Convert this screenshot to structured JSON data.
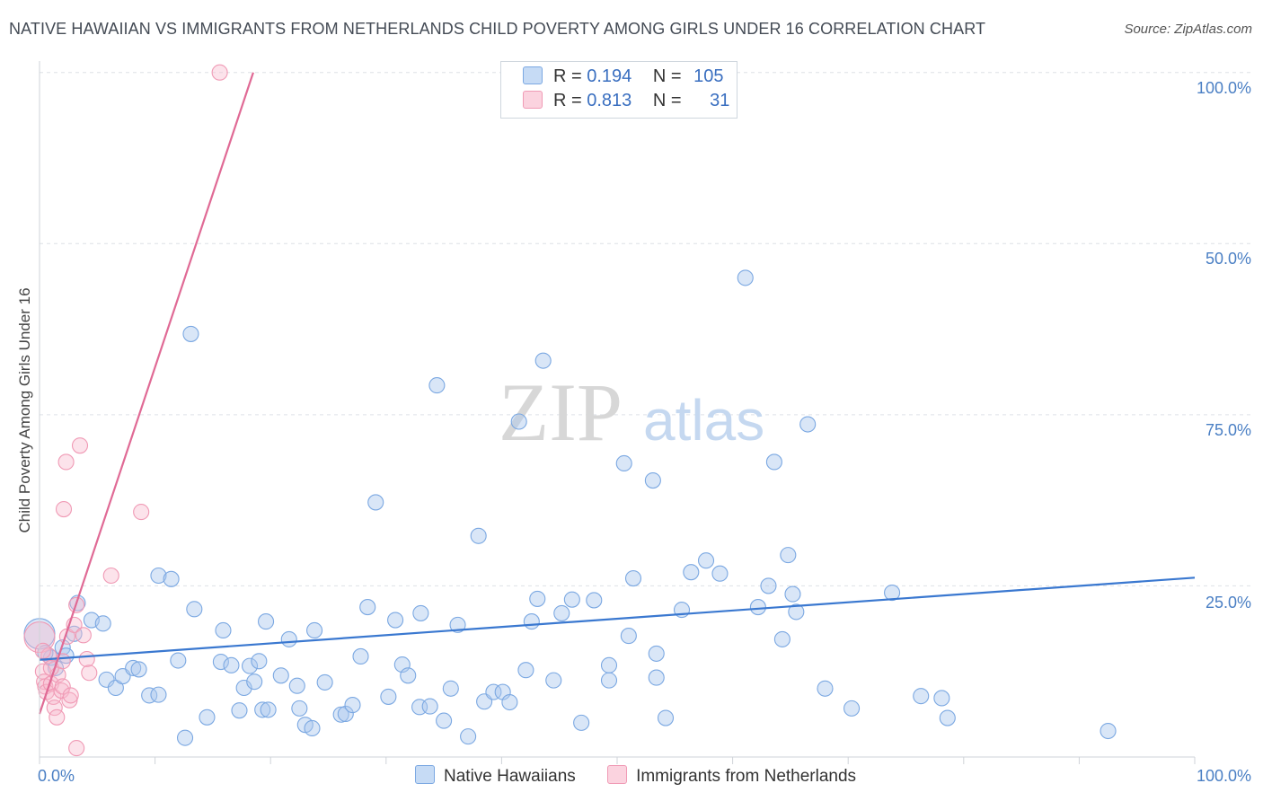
{
  "title": "NATIVE HAWAIIAN VS IMMIGRANTS FROM NETHERLANDS CHILD POVERTY AMONG GIRLS UNDER 16 CORRELATION CHART",
  "source": "Source: ZipAtlas.com",
  "watermark": {
    "zip": "ZIP",
    "atlas": "atlas"
  },
  "legend_top": [
    {
      "r_label": "R =",
      "r_value": "0.194",
      "n_label": "N =",
      "n_value": "105",
      "color": "#aac8ee"
    },
    {
      "r_label": "R =",
      "r_value": "0.813",
      "n_label": "N =",
      "n_value": "31",
      "color": "#f7b8cc"
    }
  ],
  "chart_data": {
    "type": "scatter",
    "title": "NATIVE HAWAIIAN VS IMMIGRANTS FROM NETHERLANDS CHILD POVERTY AMONG GIRLS UNDER 16 CORRELATION CHART",
    "xlabel": "",
    "ylabel": "Child Poverty Among Girls Under 16",
    "xlim": [
      0,
      100
    ],
    "ylim": [
      0,
      105
    ],
    "x_tick_labels": [
      "0.0%",
      "100.0%"
    ],
    "y_tick_labels": [
      "25.0%",
      "50.0%",
      "75.0%",
      "100.0%"
    ],
    "y_ticks": [
      25,
      50,
      75,
      100
    ],
    "grid": "horizontal dashed",
    "legend": "bottom-center",
    "series": [
      {
        "name": "Native Hawaiians",
        "color": "#6fa3e0",
        "fill": "#aac8ee",
        "trend": {
          "x0": 0,
          "y0": 14.2,
          "x1": 100,
          "y1": 26.2,
          "color": "#3a78d0"
        },
        "points": [
          [
            0.0,
            18.0
          ],
          [
            1.0,
            14.5
          ],
          [
            2.0,
            16.0
          ],
          [
            2.3,
            14.8
          ],
          [
            1.4,
            13.0
          ],
          [
            3.3,
            22.5
          ],
          [
            4.5,
            20.0
          ],
          [
            5.5,
            19.5
          ],
          [
            5.8,
            11.3
          ],
          [
            6.6,
            10.1
          ],
          [
            7.2,
            11.8
          ],
          [
            8.1,
            13.0
          ],
          [
            8.6,
            12.8
          ],
          [
            9.5,
            9.0
          ],
          [
            10.3,
            26.5
          ],
          [
            11.4,
            26.0
          ],
          [
            12.0,
            14.1
          ],
          [
            10.3,
            9.1
          ],
          [
            12.6,
            2.8
          ],
          [
            13.1,
            61.8
          ],
          [
            13.4,
            21.6
          ],
          [
            14.5,
            5.8
          ],
          [
            15.7,
            13.9
          ],
          [
            15.9,
            18.5
          ],
          [
            16.6,
            13.4
          ],
          [
            17.3,
            6.8
          ],
          [
            17.7,
            10.1
          ],
          [
            18.2,
            13.3
          ],
          [
            18.6,
            11.0
          ],
          [
            19.3,
            6.9
          ],
          [
            19.6,
            19.8
          ],
          [
            19.8,
            6.9
          ],
          [
            20.9,
            11.9
          ],
          [
            21.6,
            17.2
          ],
          [
            22.3,
            10.4
          ],
          [
            22.5,
            7.1
          ],
          [
            23.0,
            4.7
          ],
          [
            23.8,
            18.5
          ],
          [
            23.6,
            4.2
          ],
          [
            24.7,
            10.9
          ],
          [
            26.1,
            6.2
          ],
          [
            26.5,
            6.3
          ],
          [
            27.1,
            7.6
          ],
          [
            27.8,
            14.7
          ],
          [
            28.4,
            21.9
          ],
          [
            29.1,
            37.2
          ],
          [
            30.2,
            8.8
          ],
          [
            30.8,
            20.0
          ],
          [
            31.4,
            13.5
          ],
          [
            31.9,
            11.9
          ],
          [
            32.9,
            7.3
          ],
          [
            33.8,
            7.4
          ],
          [
            34.4,
            54.3
          ],
          [
            35.0,
            5.3
          ],
          [
            35.6,
            10.0
          ],
          [
            36.2,
            19.3
          ],
          [
            37.1,
            3.0
          ],
          [
            38.5,
            8.1
          ],
          [
            38.0,
            32.3
          ],
          [
            39.3,
            9.5
          ],
          [
            40.1,
            9.5
          ],
          [
            40.7,
            8.0
          ],
          [
            41.5,
            49.0
          ],
          [
            42.1,
            12.7
          ],
          [
            42.6,
            19.8
          ],
          [
            43.1,
            23.1
          ],
          [
            43.6,
            57.9
          ],
          [
            44.5,
            11.2
          ],
          [
            45.2,
            21.0
          ],
          [
            46.1,
            23.0
          ],
          [
            46.9,
            5.0
          ],
          [
            48.0,
            22.9
          ],
          [
            49.3,
            11.2
          ],
          [
            49.3,
            13.4
          ],
          [
            50.6,
            42.9
          ],
          [
            51.0,
            17.7
          ],
          [
            51.4,
            26.1
          ],
          [
            53.1,
            40.4
          ],
          [
            53.4,
            15.1
          ],
          [
            53.4,
            11.6
          ],
          [
            54.2,
            5.7
          ],
          [
            55.6,
            21.5
          ],
          [
            56.4,
            27.0
          ],
          [
            57.7,
            28.7
          ],
          [
            58.9,
            26.8
          ],
          [
            61.1,
            70.0
          ],
          [
            62.2,
            21.9
          ],
          [
            63.1,
            25.0
          ],
          [
            63.6,
            43.1
          ],
          [
            64.3,
            17.2
          ],
          [
            64.8,
            29.5
          ],
          [
            65.2,
            23.8
          ],
          [
            65.5,
            21.2
          ],
          [
            66.5,
            48.6
          ],
          [
            68.0,
            10.0
          ],
          [
            70.3,
            7.1
          ],
          [
            73.8,
            24.0
          ],
          [
            76.3,
            8.9
          ],
          [
            78.1,
            8.6
          ],
          [
            78.6,
            5.7
          ],
          [
            92.5,
            3.8
          ],
          [
            0.5,
            15.2
          ],
          [
            3.0,
            18.0
          ],
          [
            19.0,
            14.0
          ],
          [
            33.0,
            21.0
          ]
        ],
        "sizes": [
          18
        ]
      },
      {
        "name": "Immigrants from Netherlands",
        "color": "#f09ab5",
        "fill": "#f7b8cc",
        "trend": {
          "x0": 0,
          "y0": 6.3,
          "x1": 18.5,
          "y1": 100.0,
          "color": "#e06a95"
        },
        "points": [
          [
            0.0,
            17.5
          ],
          [
            0.3,
            12.5
          ],
          [
            0.4,
            11.0
          ],
          [
            0.5,
            10.3
          ],
          [
            0.6,
            9.5
          ],
          [
            0.8,
            14.8
          ],
          [
            1.0,
            10.7
          ],
          [
            1.2,
            8.8
          ],
          [
            1.3,
            7.2
          ],
          [
            1.5,
            5.8
          ],
          [
            1.6,
            12.0
          ],
          [
            1.9,
            9.7
          ],
          [
            2.0,
            10.3
          ],
          [
            2.1,
            36.2
          ],
          [
            2.3,
            43.1
          ],
          [
            2.4,
            17.6
          ],
          [
            2.6,
            8.3
          ],
          [
            2.7,
            9.0
          ],
          [
            3.0,
            19.3
          ],
          [
            3.2,
            22.2
          ],
          [
            3.2,
            1.3
          ],
          [
            3.5,
            45.5
          ],
          [
            3.8,
            17.8
          ],
          [
            4.1,
            14.3
          ],
          [
            4.3,
            12.3
          ],
          [
            6.2,
            26.5
          ],
          [
            8.8,
            35.8
          ],
          [
            15.6,
            100.0
          ],
          [
            1.0,
            13.0
          ],
          [
            2.0,
            14.0
          ],
          [
            0.3,
            15.5
          ]
        ]
      }
    ]
  }
}
